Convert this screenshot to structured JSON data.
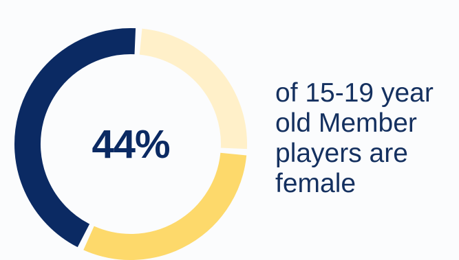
{
  "chart_data": {
    "type": "pie",
    "categories": [
      "",
      "",
      ""
    ],
    "values": [
      44,
      31,
      25
    ],
    "colors": [
      "#0b2a63",
      "#fdd96b",
      "#fff0c9"
    ],
    "center_label": "44%",
    "caption_lines": [
      "of 15-19 year",
      "old Member",
      "players are",
      "female"
    ]
  }
}
